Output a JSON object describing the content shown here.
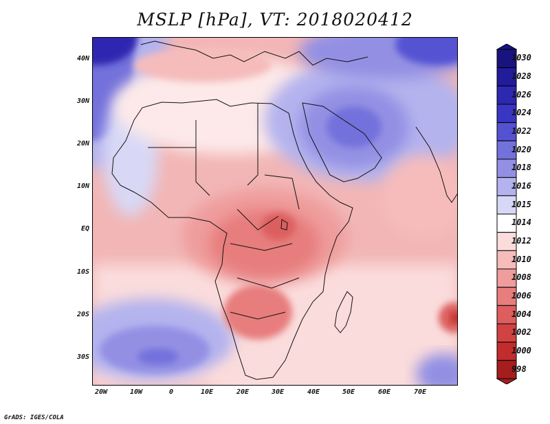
{
  "title": "MSLP [hPa], VT: 2018020412",
  "credit": "GrADS: IGES/COLA",
  "map": {
    "variable": "Mean sea level pressure",
    "units": "hPa",
    "valid_time": "2018020412",
    "lon_range": [
      -23,
      80
    ],
    "lat_range": [
      -37,
      45
    ],
    "y_ticks": [
      {
        "label": "40N",
        "lat": 40
      },
      {
        "label": "30N",
        "lat": 30
      },
      {
        "label": "20N",
        "lat": 20
      },
      {
        "label": "10N",
        "lat": 10
      },
      {
        "label": "EQ",
        "lat": 0
      },
      {
        "label": "10S",
        "lat": -10
      },
      {
        "label": "20S",
        "lat": -20
      },
      {
        "label": "30S",
        "lat": -30
      }
    ],
    "x_ticks": [
      {
        "label": "20W",
        "lon": -20
      },
      {
        "label": "10W",
        "lon": -10
      },
      {
        "label": "0",
        "lon": 0
      },
      {
        "label": "10E",
        "lon": 10
      },
      {
        "label": "20E",
        "lon": 20
      },
      {
        "label": "30E",
        "lon": 30
      },
      {
        "label": "40E",
        "lon": 40
      },
      {
        "label": "50E",
        "lon": 50
      },
      {
        "label": "60E",
        "lon": 60
      },
      {
        "label": "70E",
        "lon": 70
      }
    ]
  },
  "colorbar": {
    "levels": [
      {
        "label": "1030",
        "color": "#19137f"
      },
      {
        "label": "1028",
        "color": "#221c9a"
      },
      {
        "label": "1026",
        "color": "#2d28b0"
      },
      {
        "label": "1024",
        "color": "#3a36c4"
      },
      {
        "label": "1022",
        "color": "#5552d2"
      },
      {
        "label": "1020",
        "color": "#7371db"
      },
      {
        "label": "1018",
        "color": "#9390e4"
      },
      {
        "label": "1016",
        "color": "#b4b3ee"
      },
      {
        "label": "1015",
        "color": "#d8d8f6"
      },
      {
        "label": "1014",
        "color": "#ffffff"
      },
      {
        "label": "1012",
        "color": "#fbdcdc"
      },
      {
        "label": "1010",
        "color": "#f6bcbc"
      },
      {
        "label": "1008",
        "color": "#ef9c9c"
      },
      {
        "label": "1006",
        "color": "#e77d7d"
      },
      {
        "label": "1004",
        "color": "#dc5e5e"
      },
      {
        "label": "1002",
        "color": "#d14343"
      },
      {
        "label": "1000",
        "color": "#c22c2c"
      },
      {
        "label": "998",
        "color": "#a51d1d"
      }
    ]
  }
}
